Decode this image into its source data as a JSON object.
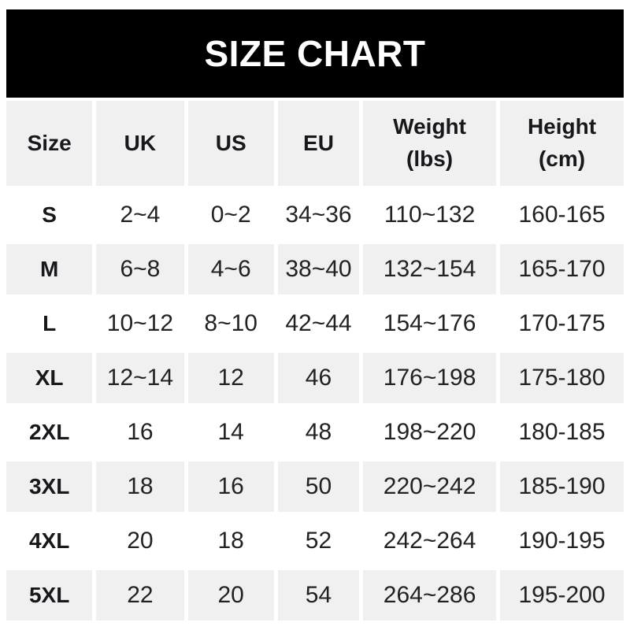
{
  "banner": {
    "title": "SIZE CHART"
  },
  "ui": {
    "header_labels": [
      "Size",
      "UK",
      "US",
      "EU",
      "Weight\n(lbs)",
      "Height\n(cm)"
    ]
  },
  "colors": {
    "banner_bg": "#000000",
    "banner_text": "#ffffff",
    "alt_row_bg": "#f0f0f0",
    "row_bg": "#ffffff",
    "text": "#222222"
  },
  "chart_data": {
    "type": "table",
    "title": "SIZE CHART",
    "columns": [
      "Size",
      "UK",
      "US",
      "EU",
      "Weight (lbs)",
      "Height (cm)"
    ],
    "rows": [
      [
        "S",
        "2~4",
        "0~2",
        "34~36",
        "110~132",
        "160-165"
      ],
      [
        "M",
        "6~8",
        "4~6",
        "38~40",
        "132~154",
        "165-170"
      ],
      [
        "L",
        "10~12",
        "8~10",
        "42~44",
        "154~176",
        "170-175"
      ],
      [
        "XL",
        "12~14",
        "12",
        "46",
        "176~198",
        "175-180"
      ],
      [
        "2XL",
        "16",
        "14",
        "48",
        "198~220",
        "180-185"
      ],
      [
        "3XL",
        "18",
        "16",
        "50",
        "220~242",
        "185-190"
      ],
      [
        "4XL",
        "20",
        "18",
        "52",
        "242~264",
        "190-195"
      ],
      [
        "5XL",
        "22",
        "20",
        "54",
        "264~286",
        "195-200"
      ]
    ]
  }
}
